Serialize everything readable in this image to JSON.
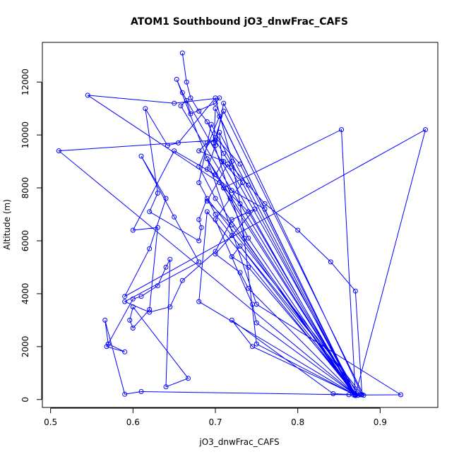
{
  "chart_data": {
    "type": "line",
    "title": "ATOM1 Southbound jO3_dnwFrac_CAFS",
    "xlabel": "jO3_dnwFrac_CAFS",
    "ylabel": "Altitude (m)",
    "xlim": [
      0.49,
      0.97
    ],
    "ylim": [
      -300,
      13500
    ],
    "x_ticks": [
      0.5,
      0.6,
      0.7,
      0.8,
      0.9
    ],
    "x_tick_labels": [
      "0.5",
      "0.6",
      "0.7",
      "0.8",
      "0.9"
    ],
    "y_ticks": [
      0,
      2000,
      4000,
      6000,
      8000,
      10000,
      12000
    ],
    "y_tick_labels": [
      "0",
      "2000",
      "4000",
      "6000",
      "8000",
      "10000",
      "12000"
    ],
    "grid": false,
    "legend": "none",
    "series": [
      {
        "color": "#0000ff",
        "marker": "open-circle",
        "x": [
          0.66,
          0.665,
          0.67,
          0.68,
          0.69,
          0.7,
          0.71,
          0.72,
          0.74,
          0.76,
          0.8,
          0.84,
          0.87,
          0.878,
          0.71,
          0.7,
          0.69,
          0.72,
          0.76,
          0.87,
          0.88,
          0.71,
          0.7,
          0.73,
          0.87,
          0.876,
          0.73,
          0.72,
          0.74,
          0.873,
          0.715,
          0.69,
          0.72,
          0.87,
          0.925,
          0.75,
          0.69,
          0.71,
          0.74,
          0.87,
          0.705,
          0.68,
          0.7,
          0.87,
          0.955,
          0.59,
          0.62,
          0.64,
          0.61,
          0.65,
          0.68,
          0.59,
          0.62,
          0.645,
          0.66,
          0.7,
          0.72,
          0.748,
          0.72,
          0.7,
          0.73,
          0.74,
          0.87,
          0.695,
          0.68,
          0.7,
          0.87,
          0.705,
          0.708,
          0.733,
          0.718,
          0.7,
          0.745,
          0.75,
          0.87,
          0.7,
          0.698,
          0.735,
          0.868,
          0.66,
          0.653,
          0.69,
          0.87,
          0.843,
          0.72,
          0.745,
          0.87,
          0.69,
          0.68,
          0.87,
          0.862,
          0.61,
          0.59,
          0.566,
          0.57,
          0.59,
          0.568,
          0.6,
          0.61,
          0.63,
          0.64,
          0.645,
          0.64,
          0.667,
          0.6,
          0.596,
          0.6,
          0.62,
          0.63,
          0.6,
          0.65,
          0.7,
          0.71,
          0.68,
          0.69,
          0.7,
          0.51,
          0.87,
          0.853,
          0.71,
          0.74,
          0.87,
          0.658,
          0.665,
          0.67,
          0.7,
          0.705,
          0.65,
          0.545,
          0.705,
          0.87,
          0.878,
          0.69,
          0.68,
          0.683,
          0.68,
          0.62,
          0.63,
          0.615,
          0.642,
          0.655,
          0.7,
          0.72,
          0.73,
          0.75,
          0.87
        ],
        "y": [
          13100,
          12000,
          11400,
          10900,
          10500,
          9800,
          9300,
          8800,
          8100,
          7400,
          6400,
          5200,
          4100,
          180,
          11200,
          9600,
          8700,
          7900,
          7200,
          150,
          160,
          10900,
          9900,
          8900,
          170,
          180,
          5800,
          5400,
          5000,
          160,
          8900,
          7500,
          6600,
          170,
          180,
          3600,
          9100,
          8000,
          7100,
          160,
          10700,
          8800,
          7600,
          170,
          10200,
          3900,
          5700,
          7600,
          9200,
          6900,
          5200,
          3700,
          3300,
          3500,
          4500,
          5600,
          6800,
          7200,
          6200,
          5500,
          4800,
          4200,
          160,
          10400,
          8200,
          7000,
          170,
          10100,
          9000,
          8200,
          7600,
          6800,
          3600,
          2900,
          170,
          11000,
          9700,
          6100,
          170,
          11600,
          12100,
          9100,
          180,
          220,
          3000,
          2000,
          170,
          7100,
          3700,
          160,
          180,
          300,
          200,
          3000,
          2100,
          1800,
          2000,
          3800,
          3900,
          4300,
          5000,
          5300,
          480,
          800,
          3500,
          3000,
          2700,
          3400,
          6500,
          6400,
          9400,
          8500,
          9000,
          9400,
          9700,
          9800,
          9400,
          170,
          10200,
          8000,
          6100,
          160,
          11100,
          11300,
          10800,
          11200,
          11400,
          11200,
          11500,
          8200,
          200,
          180,
          7600,
          6800,
          6500,
          6000,
          7100,
          7800,
          11000,
          9600,
          9700,
          11400,
          9000,
          7400,
          2100,
          160
        ]
      }
    ]
  }
}
